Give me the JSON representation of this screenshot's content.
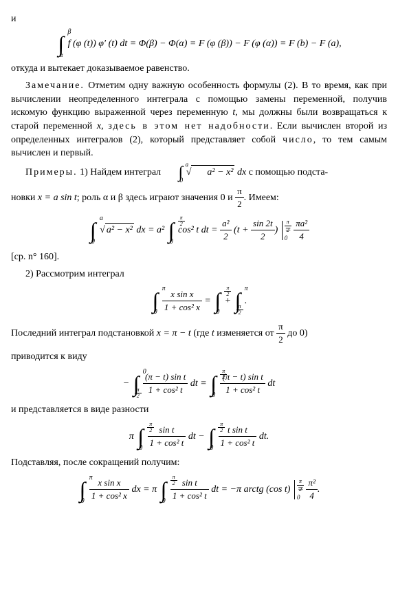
{
  "text": {
    "l0": "и",
    "conclusion": "откуда и вытекает доказываемое равенство.",
    "remark_label": "Замечание.",
    "remark_text": " Отметим одну важную особенность формулы (2). В то время, как при вычислении неопределенного интеграла с помощью замены переменной, получив искомую функцию выраженной через переменную ",
    "remark_t": "t",
    "remark_text2": ", мы должны были возвращаться к старой переменной ",
    "remark_x": "x",
    "remark_text3": ", ",
    "spaced1": "здесь в этом нет надобности",
    "remark_text4": ". Если вычислен второй из определенных интегралов (2), который представляет собой ",
    "spaced2": "число",
    "remark_text5": ", то тем самым вычислен и первый.",
    "ex_label": "Примеры.",
    "ex1a": " 1) Найдем интеграл ",
    "ex1b": " с помощью подста-",
    "ex1c": "новки ",
    "ex1_sub": "x = a sin t",
    "ex1d": "; роль α и β здесь играют значения 0 и ",
    "ex1e": ". Имеем:",
    "ref": "[ср. n° 160].",
    "ex2": "2) Рассмотрим интеграл",
    "ex2_last": "Последний интеграл подстановкой ",
    "ex2_sub": "x = π − t",
    "ex2_paren": " (где ",
    "ex2_t": "t",
    "ex2_paren2": " изменяется от ",
    "ex2_paren3": " до 0)",
    "ex2_reduce": "приводится к виду",
    "ex2_diff": "и представляется в виде разности",
    "ex2_final": "Подставляя, после сокращений получим:"
  },
  "math": {
    "eq1_lhs": "f (φ (t)) φ′ (t) dt = Φ(β) − Φ(α) = F (φ (β)) − F (φ (α)) = F (b) − F (a),",
    "eq1_upper": "β",
    "eq1_lower": "α",
    "ex1_int_upper": "a",
    "ex1_int_lower": "0",
    "ex1_integrand_root": "a² − x²",
    "ex1_dx": " dx",
    "pi_over_2_num": "π",
    "pi_over_2_den": "2",
    "big1_lhs_root": "a² − x²",
    "big1_a2": "= a²",
    "big1_cos": "cos² t dt =",
    "big1_frac_a2": "a²",
    "big1_frac_2": "2",
    "big1_paren": "t +",
    "big1_sin2t": "sin 2t",
    "big1_two": "2",
    "big1_result_num": "πa²",
    "big1_result_den": "4",
    "ex2_upper": "π",
    "ex2_lower": "0",
    "ex2_integrand_num": "x sin x",
    "ex2_integrand_den": "1 + cos² x",
    "plus": " + ",
    "dot": ".",
    "eq3_neg": "−",
    "eq3_num": "(π − t) sin t",
    "eq3_den": "1 + cos² t",
    "eq3_dt": " dt",
    "eq3_eq": " = ",
    "eq4_pi": "π",
    "eq4_num1": "sin t",
    "eq4_den": "1 + cos² t",
    "eq4_minus": " − ",
    "eq4_num2": "t sin t",
    "eq5_dx": " dx = π",
    "eq5_arctg": " dt = −π arctg (cos t)",
    "eq5_result_num": "π²",
    "eq5_result_den": "4",
    "zero": "0"
  },
  "style": {
    "body_font": "Times New Roman",
    "body_size": 14,
    "text_color": "#000000",
    "bg_color": "#ffffff"
  }
}
